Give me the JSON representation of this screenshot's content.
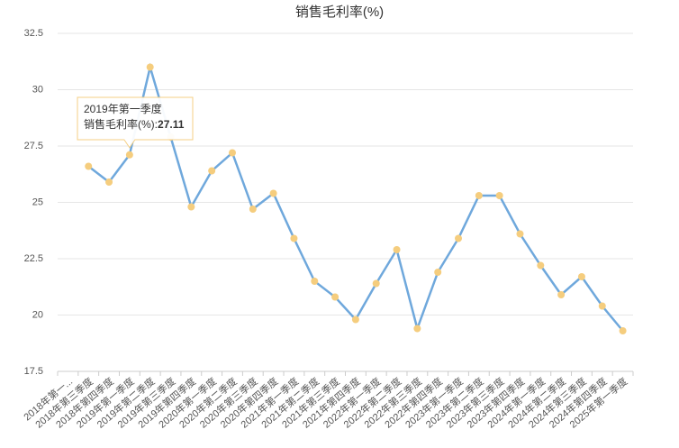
{
  "chart_data": {
    "type": "line",
    "title": "销售毛利率(%)",
    "categories": [
      "2018年第一...",
      "2018年第三季度",
      "2018年第四季度",
      "2019年第一季度",
      "2019年第二季度",
      "2019年第三季度",
      "2019年第四季度",
      "2020年第一季度",
      "2020年第二季度",
      "2020年第三季度",
      "2020年第四季度",
      "2021年第一季度",
      "2021年第二季度",
      "2021年第三季度",
      "2021年第四季度",
      "2022年第一季度",
      "2022年第二季度",
      "2022年第三季度",
      "2022年第四季度",
      "2023年第一季度",
      "2023年第二季度",
      "2023年第三季度",
      "2023年第四季度",
      "2024年第一季度",
      "2024年第二季度",
      "2024年第三季度",
      "2024年第四季度",
      "2025年第一季度"
    ],
    "series": [
      {
        "name": "销售毛利率(%)",
        "color": "#6fa8dc",
        "marker_color": "#f5cd7e",
        "values": [
          null,
          26.6,
          25.9,
          27.11,
          31.0,
          27.9,
          24.8,
          26.4,
          27.2,
          24.7,
          25.4,
          23.4,
          21.5,
          20.8,
          19.8,
          21.4,
          22.9,
          19.4,
          21.9,
          23.4,
          25.3,
          25.3,
          23.6,
          22.2,
          20.9,
          21.7,
          20.4,
          19.3
        ]
      }
    ],
    "ylim": [
      17.5,
      32.5
    ],
    "yticks": [
      17.5,
      20,
      22.5,
      25,
      27.5,
      30,
      32.5
    ],
    "grid": true,
    "tooltip": {
      "category": "2019年第一季度",
      "series": "销售毛利率(%)",
      "value": "27.11"
    }
  }
}
